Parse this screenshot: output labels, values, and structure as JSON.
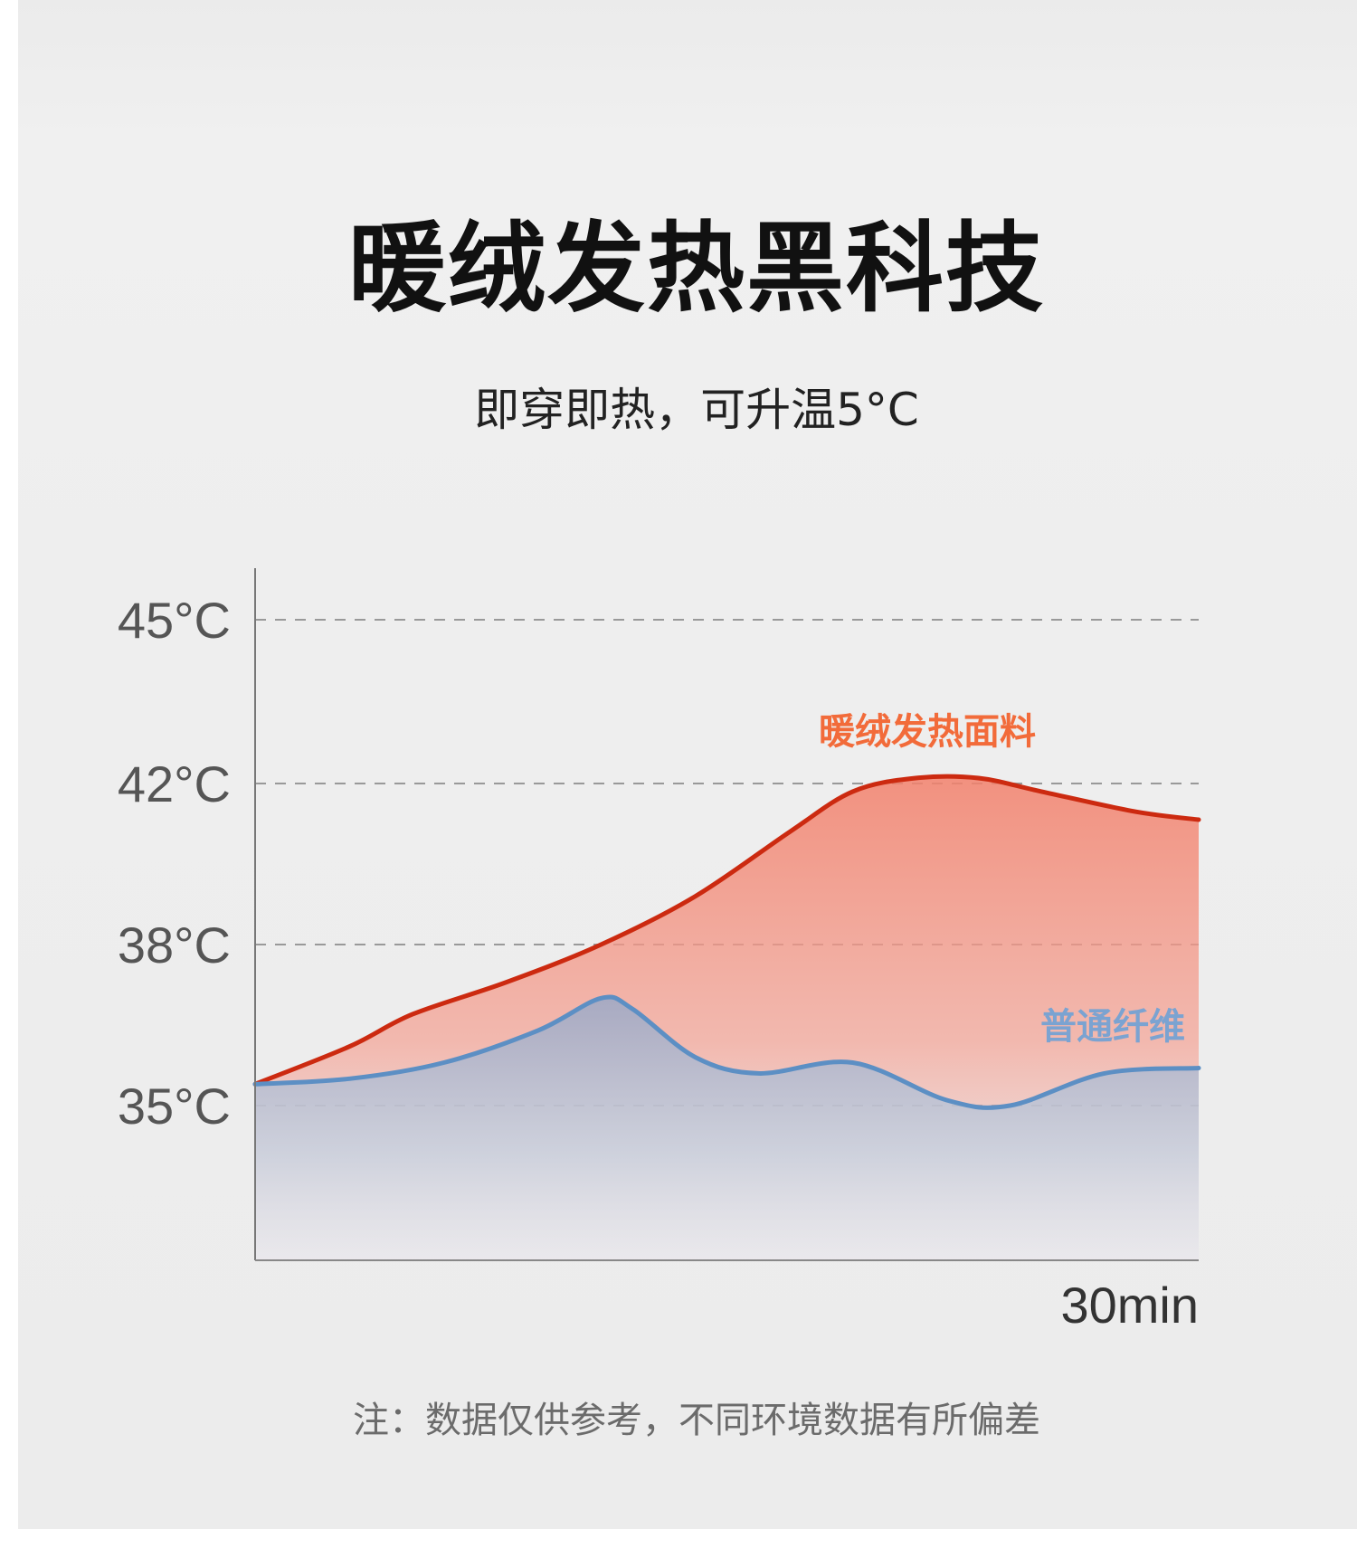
{
  "title": "暖绒发热黑科技",
  "subtitle": "即穿即热，可升温5°C",
  "note": "注：数据仅供参考，不同环境数据有所偏差",
  "chart_data": {
    "type": "area",
    "title": "",
    "xlabel": "30min",
    "ylabel": "",
    "y_ticks": [
      {
        "value": 45,
        "label": "45°C"
      },
      {
        "value": 42,
        "label": "42°C"
      },
      {
        "value": 38,
        "label": "38°C"
      },
      {
        "value": 35,
        "label": "35°C"
      }
    ],
    "x_range": [
      0,
      30
    ],
    "grid": "horizontal dashed",
    "series": [
      {
        "name": "暖绒发热面料",
        "color": "#cc2a10",
        "label_color": "#f26b3a",
        "fill_color": "#f3806b",
        "x": [
          0,
          3,
          5,
          8,
          11,
          14,
          17,
          19,
          21,
          23,
          25,
          28,
          30
        ],
        "y": [
          35.4,
          36.1,
          36.7,
          37.3,
          38.0,
          39.2,
          40.8,
          41.8,
          42.1,
          42.1,
          41.8,
          41.3,
          41.1
        ]
      },
      {
        "name": "普通纤维",
        "color": "#5c8fc4",
        "label_color": "#7ba3d1",
        "fill_color": "#a9bfd8",
        "x": [
          0,
          3,
          6,
          9,
          11,
          12,
          14,
          16,
          19,
          22,
          24,
          27,
          30
        ],
        "y": [
          35.4,
          35.5,
          35.8,
          36.4,
          37.0,
          36.8,
          35.9,
          35.6,
          35.8,
          35.1,
          35.0,
          35.6,
          35.7
        ]
      }
    ]
  }
}
